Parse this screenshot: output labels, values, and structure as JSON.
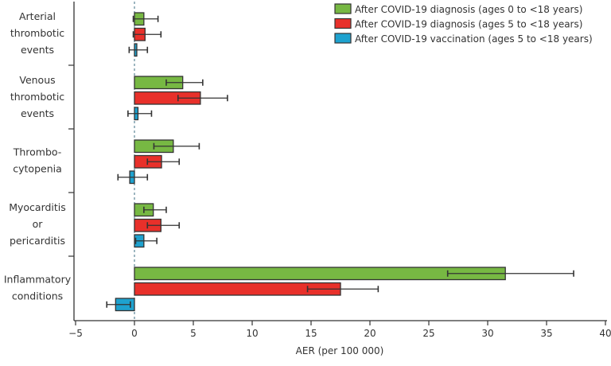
{
  "chart_data": {
    "type": "bar",
    "orientation": "horizontal",
    "xlabel": "AER (per 100 000)",
    "ylabel": "",
    "xlim": [
      -5,
      40
    ],
    "xticks": [
      -5,
      0,
      5,
      10,
      15,
      20,
      25,
      30,
      35,
      40
    ],
    "grid": false,
    "legend_position": "top-right",
    "reference_line": {
      "x": 0,
      "style": "dashed"
    },
    "categories": [
      [
        "Arterial",
        "thrombotic",
        "events"
      ],
      [
        "Venous",
        "thrombotic",
        "events"
      ],
      [
        "Thrombo-",
        "cytopenia"
      ],
      [
        "Myocarditis",
        "or",
        "pericarditis"
      ],
      [
        "Inflammatory",
        "conditions"
      ]
    ],
    "series": [
      {
        "name": "After COVID-19 diagnosis (ages 0 to <18 years)",
        "color": "#77b843",
        "values": [
          0.8,
          4.1,
          3.3,
          1.6,
          31.5
        ],
        "ci_low": [
          -0.1,
          2.7,
          1.65,
          0.8,
          26.6
        ],
        "ci_high": [
          2.0,
          5.8,
          5.5,
          2.7,
          37.3
        ]
      },
      {
        "name": "After COVID-19 diagnosis (ages 5 to <18 years)",
        "color": "#e8302a",
        "values": [
          0.9,
          5.6,
          2.3,
          2.25,
          17.5
        ],
        "ci_low": [
          -0.1,
          3.7,
          1.1,
          1.1,
          14.7
        ],
        "ci_high": [
          2.25,
          7.9,
          3.8,
          3.8,
          20.7
        ]
      },
      {
        "name": "After COVID-19 vaccination (ages 5 to <18 years)",
        "color": "#1ea2cf",
        "values": [
          0.2,
          0.3,
          -0.4,
          0.8,
          -1.6
        ],
        "ci_low": [
          -0.45,
          -0.55,
          -1.4,
          0.1,
          -2.35
        ],
        "ci_high": [
          1.1,
          1.45,
          1.1,
          1.9,
          -0.35
        ]
      }
    ]
  }
}
